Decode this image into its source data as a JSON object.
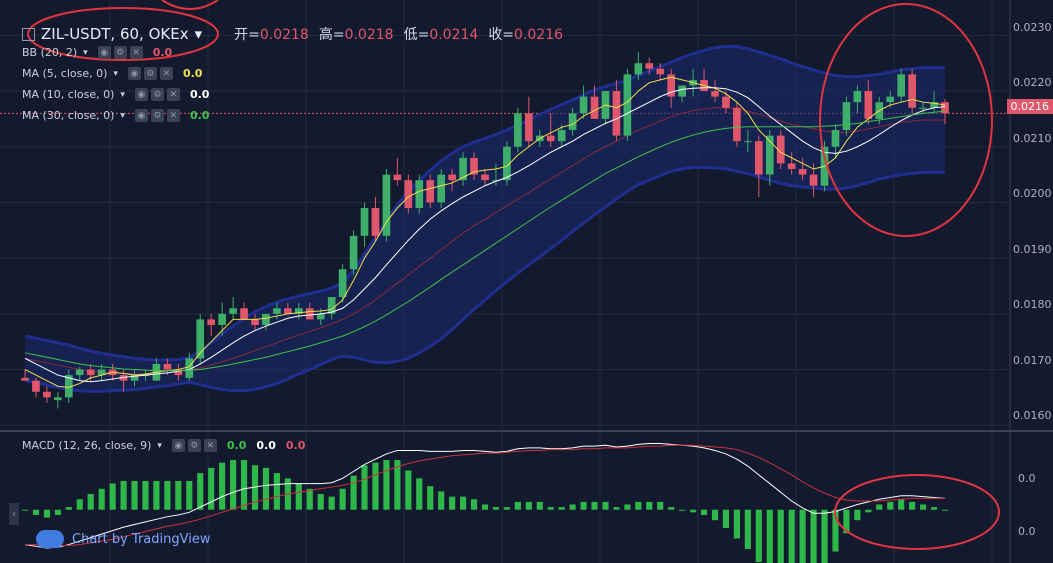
{
  "header": {
    "symbol": "ZIL-USDT, 60, OKEx",
    "ohlc": [
      {
        "label": "开=",
        "value": "0.0218"
      },
      {
        "label": "高=",
        "value": "0.0218"
      },
      {
        "label": "低=",
        "value": "0.0214"
      },
      {
        "label": "收=",
        "value": "0.0216"
      }
    ]
  },
  "indicators": [
    {
      "label": "BB (20, 2)",
      "value": "0.0",
      "color": "#e0566a"
    },
    {
      "label": "MA (5, close, 0)",
      "value": "0.0",
      "color": "#f2e04a"
    },
    {
      "label": "MA (10, close, 0)",
      "value": "0.0",
      "color": "#ffffff"
    },
    {
      "label": "MA (30, close, 0)",
      "value": "0.0",
      "color": "#3fc24a"
    }
  ],
  "macd_legend": {
    "label": "MACD (12, 26, close, 9)",
    "values": [
      {
        "v": "0.0",
        "color": "#3fc24a"
      },
      {
        "v": "0.0",
        "color": "#ffffff"
      },
      {
        "v": "0.0",
        "color": "#e0566a"
      }
    ]
  },
  "price_axis": {
    "ticks": [
      "0.0230",
      "0.0220",
      "0.0210",
      "0.0200",
      "0.0190",
      "0.0180",
      "0.0170",
      "0.0160"
    ],
    "current": "0.0216"
  },
  "macd_axis": {
    "ticks": [
      "0.0",
      "0.0"
    ]
  },
  "watermark": "Chart by TradingView",
  "chart_data": {
    "type": "candlestick",
    "ylim": [
      0.01595,
      0.02315
    ],
    "ohlc": [
      [
        0.01685,
        0.017,
        0.0168,
        0.0168
      ],
      [
        0.0168,
        0.01685,
        0.0165,
        0.0166
      ],
      [
        0.0166,
        0.0167,
        0.0164,
        0.0165
      ],
      [
        0.01645,
        0.0166,
        0.0163,
        0.0165
      ],
      [
        0.0165,
        0.017,
        0.0164,
        0.0169
      ],
      [
        0.0169,
        0.01705,
        0.0168,
        0.017
      ],
      [
        0.017,
        0.0171,
        0.0168,
        0.0169
      ],
      [
        0.0169,
        0.0171,
        0.0168,
        0.017
      ],
      [
        0.017,
        0.0171,
        0.0168,
        0.0169
      ],
      [
        0.0169,
        0.017,
        0.0166,
        0.0168
      ],
      [
        0.0168,
        0.017,
        0.0167,
        0.0169
      ],
      [
        0.0169,
        0.017,
        0.0168,
        0.0169
      ],
      [
        0.0168,
        0.0172,
        0.0168,
        0.0171
      ],
      [
        0.0171,
        0.0172,
        0.0169,
        0.017
      ],
      [
        0.017,
        0.0171,
        0.0168,
        0.0169
      ],
      [
        0.01685,
        0.0173,
        0.0168,
        0.0172
      ],
      [
        0.0172,
        0.018,
        0.0171,
        0.0179
      ],
      [
        0.0179,
        0.018,
        0.0176,
        0.0178
      ],
      [
        0.0178,
        0.0182,
        0.0176,
        0.018
      ],
      [
        0.018,
        0.0183,
        0.0179,
        0.0181
      ],
      [
        0.0181,
        0.0182,
        0.0179,
        0.0179
      ],
      [
        0.0179,
        0.018,
        0.0177,
        0.0178
      ],
      [
        0.0178,
        0.018,
        0.0177,
        0.018
      ],
      [
        0.018,
        0.0182,
        0.0179,
        0.0181
      ],
      [
        0.0181,
        0.0182,
        0.018,
        0.018
      ],
      [
        0.018,
        0.0182,
        0.0179,
        0.0181
      ],
      [
        0.0181,
        0.0182,
        0.0179,
        0.0179
      ],
      [
        0.0179,
        0.0181,
        0.0178,
        0.018
      ],
      [
        0.018,
        0.0183,
        0.0179,
        0.0183
      ],
      [
        0.0183,
        0.0189,
        0.0182,
        0.0188
      ],
      [
        0.0188,
        0.0195,
        0.0187,
        0.0194
      ],
      [
        0.0194,
        0.02,
        0.0192,
        0.0199
      ],
      [
        0.0199,
        0.0201,
        0.0193,
        0.0194
      ],
      [
        0.0194,
        0.0206,
        0.0193,
        0.0205
      ],
      [
        0.0205,
        0.0208,
        0.0203,
        0.0204
      ],
      [
        0.0204,
        0.0205,
        0.0198,
        0.0199
      ],
      [
        0.0199,
        0.0205,
        0.0198,
        0.0204
      ],
      [
        0.0204,
        0.0205,
        0.0199,
        0.02
      ],
      [
        0.02,
        0.0206,
        0.0199,
        0.0205
      ],
      [
        0.0205,
        0.0206,
        0.0202,
        0.0204
      ],
      [
        0.0204,
        0.0209,
        0.0203,
        0.0208
      ],
      [
        0.0208,
        0.0209,
        0.0204,
        0.0205
      ],
      [
        0.0205,
        0.0206,
        0.0203,
        0.0204
      ],
      [
        0.0204,
        0.0207,
        0.0203,
        0.0204
      ],
      [
        0.0204,
        0.0211,
        0.0203,
        0.021
      ],
      [
        0.021,
        0.0217,
        0.0209,
        0.0216
      ],
      [
        0.0216,
        0.0219,
        0.021,
        0.0211
      ],
      [
        0.0211,
        0.0213,
        0.021,
        0.0212
      ],
      [
        0.0212,
        0.0216,
        0.021,
        0.0211
      ],
      [
        0.0211,
        0.0214,
        0.021,
        0.0213
      ],
      [
        0.0213,
        0.0217,
        0.0212,
        0.0216
      ],
      [
        0.0216,
        0.0221,
        0.0215,
        0.0219
      ],
      [
        0.0219,
        0.0221,
        0.0215,
        0.0215
      ],
      [
        0.0215,
        0.022,
        0.0214,
        0.022
      ],
      [
        0.022,
        0.0222,
        0.0211,
        0.0212
      ],
      [
        0.0212,
        0.0224,
        0.0211,
        0.0223
      ],
      [
        0.0223,
        0.0227,
        0.0222,
        0.0225
      ],
      [
        0.0225,
        0.0226,
        0.0223,
        0.0224
      ],
      [
        0.0224,
        0.0225,
        0.0222,
        0.0223
      ],
      [
        0.0223,
        0.0224,
        0.0217,
        0.0219
      ],
      [
        0.0219,
        0.0221,
        0.0218,
        0.0221
      ],
      [
        0.0221,
        0.0224,
        0.0219,
        0.0222
      ],
      [
        0.0222,
        0.0224,
        0.022,
        0.022
      ],
      [
        0.022,
        0.0222,
        0.0218,
        0.0219
      ],
      [
        0.0219,
        0.022,
        0.0216,
        0.0217
      ],
      [
        0.0217,
        0.0218,
        0.021,
        0.0211
      ],
      [
        0.0211,
        0.0213,
        0.0209,
        0.0211
      ],
      [
        0.0211,
        0.0212,
        0.0201,
        0.0205
      ],
      [
        0.0205,
        0.0213,
        0.0203,
        0.0212
      ],
      [
        0.0212,
        0.0213,
        0.0206,
        0.0207
      ],
      [
        0.0207,
        0.0209,
        0.0205,
        0.0206
      ],
      [
        0.0206,
        0.0208,
        0.0204,
        0.0205
      ],
      [
        0.0205,
        0.0207,
        0.0201,
        0.0203
      ],
      [
        0.0203,
        0.0211,
        0.0202,
        0.021
      ],
      [
        0.021,
        0.0214,
        0.0208,
        0.0213
      ],
      [
        0.0213,
        0.0219,
        0.0212,
        0.0218
      ],
      [
        0.0218,
        0.0221,
        0.0216,
        0.022
      ],
      [
        0.022,
        0.0222,
        0.0214,
        0.0215
      ],
      [
        0.0215,
        0.0219,
        0.0214,
        0.0218
      ],
      [
        0.0218,
        0.022,
        0.0217,
        0.0219
      ],
      [
        0.0219,
        0.0224,
        0.0218,
        0.0223
      ],
      [
        0.0223,
        0.0224,
        0.0216,
        0.0217
      ],
      [
        0.0217,
        0.0218,
        0.0216,
        0.0217
      ],
      [
        0.0217,
        0.022,
        0.0216,
        0.0218
      ],
      [
        0.0218,
        0.02185,
        0.0214,
        0.0216
      ]
    ],
    "ma5": [
      0.017,
      0.0169,
      0.0168,
      0.0167,
      0.01668,
      0.01675,
      0.01685,
      0.0169,
      0.01695,
      0.01693,
      0.0169,
      0.01692,
      0.01695,
      0.01698,
      0.017,
      0.01705,
      0.0173,
      0.0175,
      0.0177,
      0.0179,
      0.0179,
      0.0179,
      0.01792,
      0.01796,
      0.018,
      0.01802,
      0.01804,
      0.01805,
      0.01808,
      0.01825,
      0.0186,
      0.019,
      0.0193,
      0.01965,
      0.0199,
      0.0201,
      0.0202,
      0.02025,
      0.0203,
      0.02035,
      0.02045,
      0.02055,
      0.02058,
      0.0206,
      0.02065,
      0.02085,
      0.021,
      0.02115,
      0.02125,
      0.02135,
      0.0214,
      0.02155,
      0.02165,
      0.02175,
      0.0217,
      0.0218,
      0.022,
      0.02215,
      0.0222,
      0.02225,
      0.0222,
      0.02215,
      0.0221,
      0.02205,
      0.02195,
      0.0218,
      0.0216,
      0.0213,
      0.0211,
      0.0209,
      0.0208,
      0.0207,
      0.0206,
      0.02065,
      0.0208,
      0.0211,
      0.02135,
      0.0215,
      0.02165,
      0.02175,
      0.0218,
      0.02185,
      0.0218,
      0.02178,
      0.02175
    ],
    "ma10": [
      0.0172,
      0.0171,
      0.017,
      0.0169,
      0.01685,
      0.0168,
      0.01678,
      0.0168,
      0.01683,
      0.01686,
      0.01688,
      0.0169,
      0.01692,
      0.01694,
      0.01697,
      0.017,
      0.0171,
      0.01722,
      0.01735,
      0.01748,
      0.0176,
      0.0177,
      0.01778,
      0.01785,
      0.01792,
      0.01796,
      0.01798,
      0.018,
      0.01803,
      0.0181,
      0.01825,
      0.01845,
      0.01865,
      0.01888,
      0.0191,
      0.01932,
      0.01952,
      0.0197,
      0.01985,
      0.01998,
      0.0201,
      0.0202,
      0.0203,
      0.02038,
      0.02045,
      0.02055,
      0.02066,
      0.02078,
      0.0209,
      0.021,
      0.0211,
      0.02122,
      0.02132,
      0.02142,
      0.0215,
      0.0216,
      0.0217,
      0.0218,
      0.0219,
      0.02198,
      0.02203,
      0.02205,
      0.02206,
      0.02206,
      0.02204,
      0.02198,
      0.02188,
      0.02172,
      0.02155,
      0.0214,
      0.02125,
      0.0211,
      0.02098,
      0.0209,
      0.02088,
      0.02092,
      0.021,
      0.0211,
      0.02122,
      0.02135,
      0.02147,
      0.02157,
      0.02165,
      0.0217,
      0.02172
    ],
    "ma30": [
      0.0173,
      0.01726,
      0.01722,
      0.01718,
      0.01714,
      0.0171,
      0.01707,
      0.01705,
      0.01703,
      0.01701,
      0.017,
      0.01699,
      0.01698,
      0.01698,
      0.01698,
      0.01699,
      0.017,
      0.01703,
      0.01706,
      0.0171,
      0.01714,
      0.01718,
      0.01722,
      0.01727,
      0.01732,
      0.01737,
      0.01742,
      0.01748,
      0.01754,
      0.0176,
      0.01768,
      0.01777,
      0.01787,
      0.01798,
      0.0181,
      0.01822,
      0.01835,
      0.01848,
      0.01862,
      0.01875,
      0.01888,
      0.01901,
      0.01914,
      0.01927,
      0.0194,
      0.01953,
      0.01966,
      0.01979,
      0.01992,
      0.02004,
      0.02016,
      0.02028,
      0.0204,
      0.02052,
      0.02062,
      0.02072,
      0.02082,
      0.02091,
      0.021,
      0.02108,
      0.02115,
      0.02121,
      0.02126,
      0.0213,
      0.02133,
      0.02135,
      0.02136,
      0.02136,
      0.02136,
      0.02136,
      0.02136,
      0.02136,
      0.02136,
      0.02137,
      0.02138,
      0.0214,
      0.02142,
      0.02145,
      0.02148,
      0.02151,
      0.02154,
      0.02157,
      0.0216,
      0.02162,
      0.02164
    ],
    "bb_mid": [
      0.0172,
      0.01716,
      0.01712,
      0.01708,
      0.01704,
      0.017,
      0.01697,
      0.01695,
      0.01694,
      0.01693,
      0.01692,
      0.01692,
      0.01693,
      0.01694,
      0.01696,
      0.01699,
      0.01703,
      0.01708,
      0.01714,
      0.0172,
      0.01727,
      0.01734,
      0.01741,
      0.01748,
      0.01755,
      0.01762,
      0.01768,
      0.01775,
      0.01782,
      0.0179,
      0.018,
      0.01812,
      0.01825,
      0.0184,
      0.01855,
      0.0187,
      0.01885,
      0.019,
      0.01915,
      0.0193,
      0.01945,
      0.01958,
      0.0197,
      0.01982,
      0.01994,
      0.02006,
      0.02018,
      0.0203,
      0.02042,
      0.02054,
      0.02066,
      0.02078,
      0.0209,
      0.021,
      0.0211,
      0.0212,
      0.0213,
      0.02138,
      0.02146,
      0.02154,
      0.0216,
      0.02165,
      0.02168,
      0.0217,
      0.0217,
      0.02168,
      0.02164,
      0.02158,
      0.02152,
      0.02146,
      0.0214,
      0.02136,
      0.02132,
      0.02128,
      0.02126,
      0.02126,
      0.02128,
      0.02132,
      0.02136,
      0.0214,
      0.02144,
      0.02146,
      0.02148,
      0.02148,
      0.02148
    ],
    "bb_width": [
      0.0004,
      0.0004,
      0.0004,
      0.0004,
      0.0004,
      0.00038,
      0.00036,
      0.00034,
      0.00032,
      0.0003,
      0.00028,
      0.00026,
      0.00024,
      0.00023,
      0.00022,
      0.00022,
      0.0003,
      0.0004,
      0.0005,
      0.00058,
      0.00065,
      0.0007,
      0.00072,
      0.00073,
      0.00072,
      0.0007,
      0.00068,
      0.00066,
      0.00064,
      0.00066,
      0.00078,
      0.00095,
      0.00112,
      0.00128,
      0.0014,
      0.0015,
      0.00155,
      0.00158,
      0.0016,
      0.00158,
      0.00155,
      0.0015,
      0.00145,
      0.0014,
      0.00136,
      0.00133,
      0.0013,
      0.00128,
      0.00125,
      0.00122,
      0.00118,
      0.00115,
      0.00112,
      0.00108,
      0.00104,
      0.001,
      0.00098,
      0.00098,
      0.00098,
      0.00098,
      0.001,
      0.00102,
      0.00105,
      0.00108,
      0.0011,
      0.00112,
      0.00112,
      0.00112,
      0.00112,
      0.00112,
      0.0011,
      0.00108,
      0.00106,
      0.00104,
      0.00102,
      0.001,
      0.00098,
      0.00096,
      0.00094,
      0.00094,
      0.00094,
      0.00094,
      0.00094,
      0.00094,
      0.00094
    ],
    "macd": {
      "ylim": [
        -0.0006,
        0.0008
      ],
      "macd": [
        -0.0004,
        -0.00042,
        -0.00044,
        -0.00043,
        -0.0004,
        -0.00036,
        -0.00032,
        -0.00028,
        -0.00024,
        -0.0002,
        -0.00017,
        -0.00014,
        -0.00011,
        -8e-05,
        -6e-05,
        -3e-05,
        3e-05,
        9e-05,
        0.00015,
        0.0002,
        0.00024,
        0.00026,
        0.00028,
        0.00029,
        0.0003,
        0.0003,
        0.0003,
        0.0003,
        0.00031,
        0.00036,
        0.00044,
        0.00052,
        0.00058,
        0.00064,
        0.00068,
        0.00068,
        0.00068,
        0.00067,
        0.00067,
        0.00067,
        0.00068,
        0.00068,
        0.00067,
        0.00066,
        0.00067,
        0.0007,
        0.00071,
        0.00071,
        0.0007,
        0.0007,
        0.00071,
        0.00073,
        0.00073,
        0.00074,
        0.00072,
        0.00073,
        0.00075,
        0.00076,
        0.00076,
        0.00075,
        0.00074,
        0.00073,
        0.00071,
        0.00068,
        0.00064,
        0.00058,
        0.0005,
        0.0004,
        0.0003,
        0.0002,
        0.0001,
        2e-05,
        -4e-05,
        -4e-05,
        -2e-05,
        2e-05,
        6e-05,
        9e-05,
        0.00012,
        0.00014,
        0.00016,
        0.00016,
        0.00015,
        0.00014,
        0.00013
      ],
      "signal": [
        -0.0004,
        -0.0004,
        -0.00041,
        -0.00041,
        -0.00041,
        -0.0004,
        -0.00038,
        -0.00036,
        -0.00034,
        -0.00031,
        -0.00028,
        -0.00025,
        -0.00022,
        -0.00019,
        -0.00017,
        -0.00014,
        -0.00011,
        -7e-05,
        -3e-05,
        1e-05,
        5e-05,
        9e-05,
        0.00012,
        0.00015,
        0.00018,
        0.0002,
        0.00022,
        0.00024,
        0.00026,
        0.00028,
        0.00031,
        0.00035,
        0.0004,
        0.00045,
        0.00049,
        0.00053,
        0.00056,
        0.00058,
        0.0006,
        0.00062,
        0.00063,
        0.00064,
        0.00065,
        0.00065,
        0.00066,
        0.00067,
        0.00068,
        0.00068,
        0.00069,
        0.00069,
        0.00069,
        0.0007,
        0.0007,
        0.00071,
        0.00071,
        0.00071,
        0.00072,
        0.00073,
        0.00073,
        0.00074,
        0.00074,
        0.00074,
        0.00073,
        0.00072,
        0.00071,
        0.00069,
        0.00065,
        0.0006,
        0.00054,
        0.00047,
        0.0004,
        0.00032,
        0.00025,
        0.00019,
        0.00014,
        0.00011,
        0.0001,
        0.0001,
        0.0001,
        0.00011,
        0.00012,
        0.00013,
        0.00013,
        0.00013,
        0.00013
      ]
    }
  }
}
